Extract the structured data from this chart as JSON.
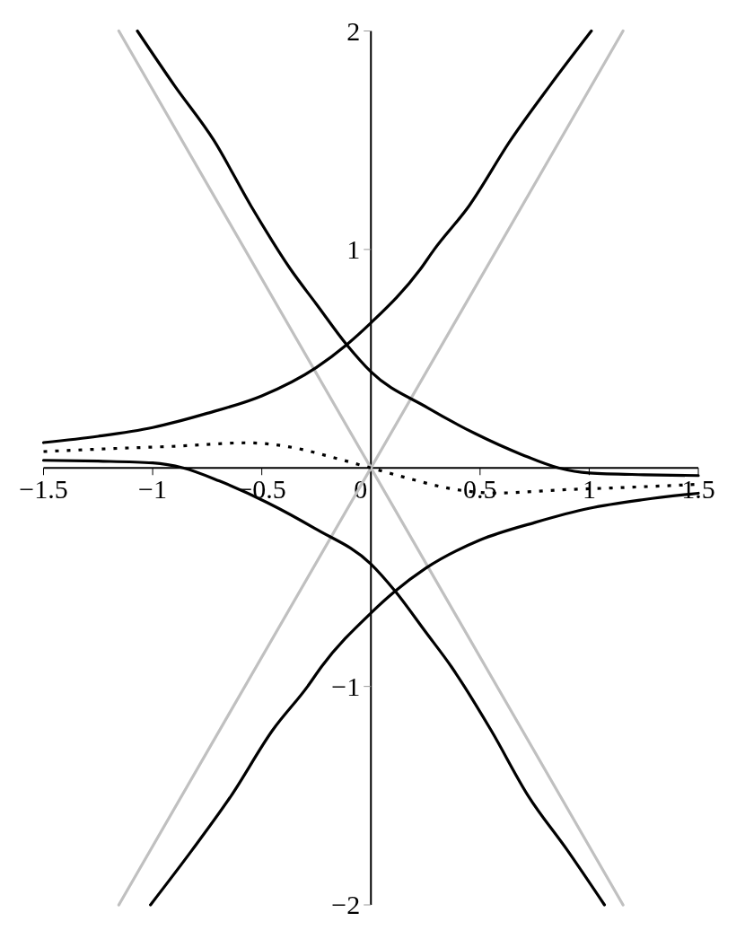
{
  "chart_data": {
    "type": "line",
    "xlim": [
      -1.5,
      1.5
    ],
    "ylim": [
      -2,
      2
    ],
    "xticks": [
      {
        "value": -1.5,
        "label": "−1.5"
      },
      {
        "value": -1,
        "label": "−1"
      },
      {
        "value": -0.5,
        "label": "−0.5"
      },
      0,
      0.5,
      1,
      1.5
    ],
    "yticks": [
      {
        "value": -2,
        "label": "−2"
      },
      {
        "value": -1,
        "label": "−1"
      },
      1,
      2
    ],
    "grid": false,
    "series": [
      {
        "color": "#c0c0c0",
        "line_style": "solid",
        "x": [
          -1.155,
          1.155
        ],
        "values": [
          2,
          -2
        ]
      },
      {
        "color": "#c0c0c0",
        "line_style": "solid",
        "x": [
          -1.155,
          1.155
        ],
        "values": [
          -2,
          2
        ]
      },
      {
        "color": "#000000",
        "line_style": "solid",
        "x": [
          -1.5,
          -1.25,
          -1,
          -0.75,
          -0.5,
          -0.25,
          -0.111,
          0,
          0.226,
          0.29,
          0.45,
          0.64,
          0.82,
          1.01
        ],
        "values": [
          0.116,
          0.145,
          0.185,
          0.25,
          0.33,
          0.46,
          0.564,
          0.664,
          0.909,
          1.0,
          1.2,
          1.5,
          1.75,
          2
        ]
      },
      {
        "color": "#000000",
        "line_style": "solid",
        "x": [
          -1.07,
          -0.9,
          -0.72,
          -0.55,
          -0.368,
          -0.25,
          -0.111,
          0,
          0.257,
          0.476,
          0.694,
          0.86,
          1.0,
          1.25,
          1.5
        ],
        "values": [
          2,
          1.75,
          1.5,
          1.2,
          0.909,
          0.75,
          0.564,
          0.44,
          0.277,
          0.158,
          0.06,
          0,
          -0.023,
          -0.031,
          -0.035
        ]
      },
      {
        "color": "#000000",
        "line_style": "solid",
        "x": [
          -1.5,
          -1.25,
          -1,
          -0.86,
          -0.694,
          -0.476,
          -0.257,
          0,
          0.111,
          0.25,
          0.368,
          0.55,
          0.72,
          0.9,
          1.07
        ],
        "values": [
          0.035,
          0.031,
          0.023,
          0,
          -0.06,
          -0.158,
          -0.277,
          -0.44,
          -0.564,
          -0.75,
          -0.909,
          -1.2,
          -1.5,
          -1.75,
          -2
        ]
      },
      {
        "color": "#000000",
        "line_style": "solid",
        "x": [
          -1.01,
          -0.82,
          -0.64,
          -0.45,
          -0.29,
          -0.226,
          0,
          0.111,
          0.25,
          0.5,
          0.75,
          1,
          1.25,
          1.5
        ],
        "values": [
          -2,
          -1.75,
          -1.5,
          -1.2,
          -1,
          -0.909,
          -0.664,
          -0.564,
          -0.46,
          -0.33,
          -0.25,
          -0.185,
          -0.145,
          -0.116
        ]
      },
      {
        "color": "#000000",
        "line_style": "dotted",
        "x": [
          -1.5,
          -1.2,
          -0.88,
          -0.57,
          -0.35,
          -0.177,
          0,
          0.177,
          0.35,
          0.57,
          0.88,
          1.2,
          1.5
        ],
        "values": [
          0.075,
          0.088,
          0.1,
          0.115,
          0.092,
          0.049,
          0,
          -0.049,
          -0.092,
          -0.115,
          -0.1,
          -0.088,
          -0.075
        ]
      }
    ]
  }
}
